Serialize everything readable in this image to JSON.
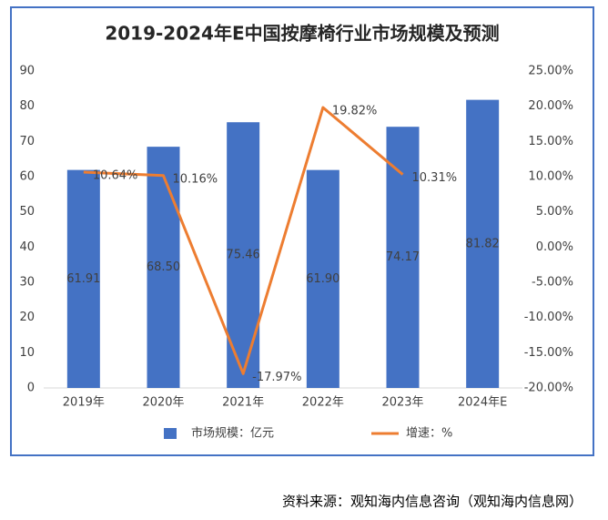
{
  "chart_data": {
    "type": "bar",
    "title": "2019-2024年E中国按摩椅行业市场规模及预测",
    "categories": [
      "2019年",
      "2020年",
      "2021年",
      "2022年",
      "2023年",
      "2024年E"
    ],
    "series": [
      {
        "name": "市场规模：亿元",
        "color": "#4472c4",
        "values": [
          61.91,
          68.5,
          75.46,
          61.9,
          74.17,
          81.82
        ],
        "value_labels": [
          "61.91",
          "68.50",
          "75.46",
          "61.90",
          "74.17",
          "81.82"
        ]
      },
      {
        "name": "增速：%",
        "type": "line",
        "axis": "y2",
        "color": "#ed7d31",
        "values": [
          10.64,
          10.16,
          -17.97,
          19.82,
          10.31,
          null
        ],
        "value_labels": [
          "10.64%",
          "10.16%",
          "-17.97%",
          "19.82%",
          "10.31%",
          null
        ]
      }
    ],
    "ylim": [
      0,
      90
    ],
    "yticks": [
      0,
      10,
      20,
      30,
      40,
      50,
      60,
      70,
      80,
      90
    ],
    "y2lim": [
      -20,
      25
    ],
    "y2ticks": [
      {
        "value": -20,
        "label": "-20.00%"
      },
      {
        "value": -15,
        "label": "-15.00%"
      },
      {
        "value": -10,
        "label": "-10.00%"
      },
      {
        "value": -5,
        "label": "-5.00%"
      },
      {
        "value": 0,
        "label": "0.00%"
      },
      {
        "value": 5,
        "label": "5.00%"
      },
      {
        "value": 10,
        "label": "10.00%"
      },
      {
        "value": 15,
        "label": "15.00%"
      },
      {
        "value": 20,
        "label": "20.00%"
      },
      {
        "value": 25,
        "label": "25.00%"
      }
    ],
    "grid": false,
    "legend": "bottom",
    "source": "资料来源：观知海内信息咨询（观知海内信息网）"
  }
}
